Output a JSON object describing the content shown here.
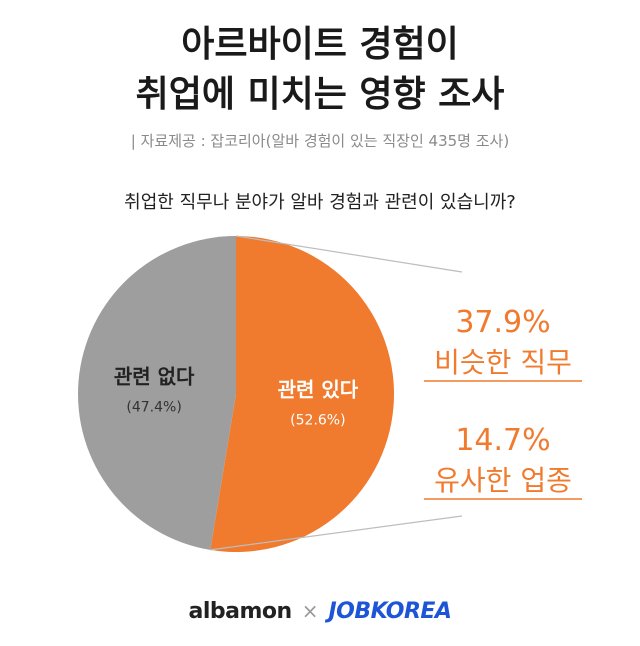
{
  "title_line1": "아르바이트 경험이",
  "title_line2": "취업에 미치는 영향 조사",
  "source": "| 자료제공 : 잡코리아(알바 경험이 있는 직장인 435명 조사)",
  "question": "취업한 직무나 분야가 알바 경험과 관련이 있습니까?",
  "chart_data": {
    "type": "pie",
    "title": "취업한 직무나 분야가 알바 경험과 관련이 있습니까?",
    "slices": [
      {
        "label": "관련 없다",
        "value": 47.4,
        "value_label": "(47.4%)",
        "color": "#9e9e9e"
      },
      {
        "label": "관련 있다",
        "value": 52.6,
        "value_label": "(52.6%)",
        "color": "#f07a2e"
      }
    ],
    "breakdown_of": "관련 있다",
    "breakdown": [
      {
        "value_label": "37.9%",
        "label": "비슷한 직무",
        "value": 37.9
      },
      {
        "value_label": "14.7%",
        "label": "유사한 업종",
        "value": 14.7
      }
    ],
    "accent_color": "#f07a2e"
  },
  "footer": {
    "brand1": "albamon",
    "separator": "×",
    "brand2": "JOBKOREA"
  }
}
